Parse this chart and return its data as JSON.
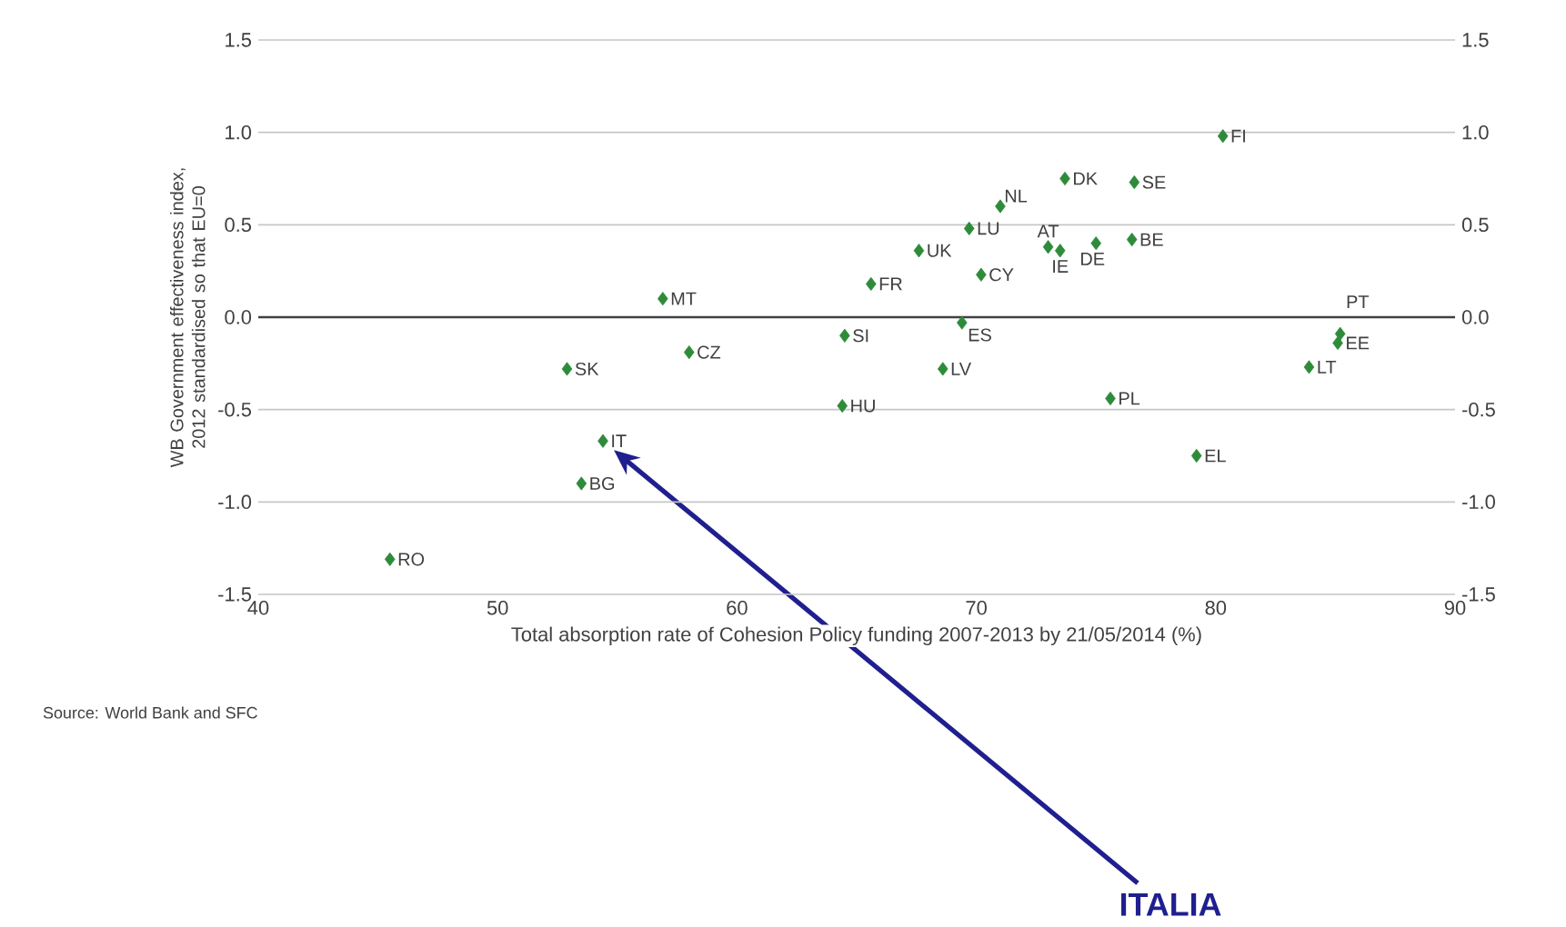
{
  "chart_data": {
    "type": "scatter",
    "xlabel": "Total absorption rate of Cohesion Policy funding 2007-2013 by 21/05/2014 (%)",
    "ylabel": "WB Government effectiveness index, 2012 standardised so that EU=0",
    "x": [
      45.5,
      53.5,
      54.4,
      52.9,
      58.0,
      56.9,
      64.5,
      64.4,
      65.6,
      67.6,
      69.7,
      71.0,
      73.7,
      76.6,
      80.3,
      70.2,
      73.0,
      73.5,
      75.0,
      76.5,
      69.4,
      68.6,
      75.6,
      79.2,
      85.2,
      85.1,
      83.9
    ],
    "values": [
      -1.31,
      -0.9,
      -0.67,
      -0.28,
      -0.19,
      0.1,
      -0.1,
      -0.48,
      0.18,
      0.36,
      0.48,
      0.6,
      0.75,
      0.73,
      0.98,
      0.23,
      0.38,
      0.36,
      0.4,
      0.42,
      -0.03,
      -0.28,
      -0.44,
      -0.75,
      -0.09,
      -0.14,
      -0.27
    ],
    "color": "#2e8b3a",
    "marker": "diamond",
    "grid": "y",
    "xlim": [
      40,
      90
    ],
    "xticks": [
      40,
      50,
      60,
      70,
      80,
      90
    ],
    "ylim": [
      -1.5,
      1.5
    ],
    "yticks": [
      -1.5,
      {
        "value": -1,
        "label": "-1.0"
      },
      -0.5,
      {
        "value": 0,
        "label": "0.0"
      },
      0.5,
      {
        "value": 1,
        "label": "1.0"
      },
      1.5
    ],
    "y2lim": [
      -1.5,
      1.5
    ],
    "y2ticks": [
      -1.5,
      {
        "value": -1,
        "label": "-1.0"
      },
      -0.5,
      {
        "value": 0,
        "label": "0.0"
      },
      0.5,
      {
        "value": 1,
        "label": "1.0"
      },
      1.5
    ],
    "ref_lines": [
      {
        "axis": "y",
        "value": 0,
        "color": "#404040"
      }
    ],
    "annotations": [
      {
        "text": "RO",
        "x": 45.5,
        "y": -1.31
      },
      {
        "text": "BG",
        "x": 53.5,
        "y": -0.9
      },
      {
        "text": "IT",
        "x": 54.4,
        "y": -0.67
      },
      {
        "text": "SK",
        "x": 52.9,
        "y": -0.28
      },
      {
        "text": "CZ",
        "x": 58.0,
        "y": -0.19
      },
      {
        "text": "MT",
        "x": 56.9,
        "y": 0.1
      },
      {
        "text": "SI",
        "x": 64.5,
        "y": -0.1
      },
      {
        "text": "HU",
        "x": 64.4,
        "y": -0.48
      },
      {
        "text": "FR",
        "x": 65.6,
        "y": 0.18
      },
      {
        "text": "UK",
        "x": 67.6,
        "y": 0.36
      },
      {
        "text": "LU",
        "x": 69.7,
        "y": 0.48
      },
      {
        "text": "NL",
        "x": 71.0,
        "y": 0.6
      },
      {
        "text": "DK",
        "x": 73.7,
        "y": 0.75
      },
      {
        "text": "SE",
        "x": 76.6,
        "y": 0.73
      },
      {
        "text": "FI",
        "x": 80.3,
        "y": 0.98
      },
      {
        "text": "CY",
        "x": 70.2,
        "y": 0.23
      },
      {
        "text": "AT",
        "x": 73.0,
        "y": 0.38
      },
      {
        "text": "IE",
        "x": 73.5,
        "y": 0.36
      },
      {
        "text": "DE",
        "x": 75.0,
        "y": 0.4
      },
      {
        "text": "BE",
        "x": 76.5,
        "y": 0.42
      },
      {
        "text": "ES",
        "x": 69.4,
        "y": -0.03
      },
      {
        "text": "LV",
        "x": 68.6,
        "y": -0.28
      },
      {
        "text": "PL",
        "x": 75.6,
        "y": -0.44
      },
      {
        "text": "EL",
        "x": 79.2,
        "y": -0.75
      },
      {
        "text": "PT",
        "x": 85.2,
        "y": -0.09
      },
      {
        "text": "EE",
        "x": 85.1,
        "y": -0.14
      },
      {
        "text": "LT",
        "x": 83.9,
        "y": -0.27
      },
      "Source: World Bank and SFC",
      "ITALIA"
    ]
  }
}
